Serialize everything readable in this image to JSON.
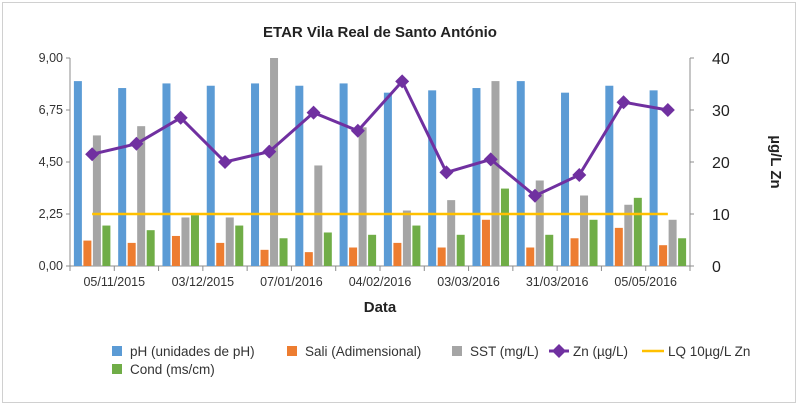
{
  "chart_data": {
    "type": "bar",
    "title": "ETAR Vila Real de Santo António",
    "xlabel": "Data",
    "ylabel_left": "",
    "ylabel_right": "µg/L Zn",
    "ylim_left": [
      0,
      9
    ],
    "ylim_right": [
      0,
      40
    ],
    "y_ticks_left": [
      "0,00",
      "2,25",
      "4,50",
      "6,75",
      "9,00"
    ],
    "y_ticks_right": [
      "0",
      "10",
      "20",
      "30",
      "40"
    ],
    "x_tick_labels": [
      "05/11/2015",
      "03/12/2015",
      "07/01/2016",
      "04/02/2016",
      "03/03/2016",
      "31/03/2016",
      "05/05/2016"
    ],
    "n_groups": 14,
    "series": [
      {
        "name": "pH (unidades de pH)",
        "kind": "bar",
        "axis": "left",
        "color": "#5B9BD5",
        "values": [
          8.0,
          7.7,
          7.9,
          7.8,
          7.9,
          7.8,
          7.9,
          7.5,
          7.6,
          7.7,
          8.0,
          7.5,
          7.8,
          7.6
        ]
      },
      {
        "name": "Sali (Adimensional)",
        "kind": "bar",
        "axis": "left",
        "color": "#ED7D31",
        "values": [
          1.1,
          1.0,
          1.3,
          1.0,
          0.7,
          0.6,
          0.8,
          1.0,
          0.8,
          2.0,
          0.8,
          1.2,
          1.65,
          0.9
        ]
      },
      {
        "name": "SST (mg/L)",
        "kind": "bar",
        "axis": "left",
        "color": "#A5A5A5",
        "values": [
          5.65,
          6.05,
          2.1,
          2.1,
          9.0,
          4.35,
          6.0,
          2.4,
          2.85,
          8.0,
          3.7,
          3.05,
          2.65,
          2.0
        ]
      },
      {
        "name": "Cond (ms/cm)",
        "kind": "bar",
        "axis": "left",
        "color": "#70AD47",
        "values": [
          1.75,
          1.55,
          2.2,
          1.75,
          1.2,
          1.45,
          1.35,
          1.75,
          1.35,
          3.35,
          1.35,
          2.0,
          2.95,
          1.2
        ]
      },
      {
        "name": "Zn (µg/L)",
        "kind": "line-marker",
        "axis": "right",
        "color": "#7030A0",
        "values": [
          21.5,
          23.5,
          28.5,
          20.0,
          22.0,
          29.5,
          26.0,
          35.5,
          18.0,
          20.5,
          13.5,
          17.5,
          31.5,
          30.0
        ]
      },
      {
        "name": "LQ 10µg/L Zn",
        "kind": "line",
        "axis": "right",
        "color": "#FFC000",
        "values": [
          10,
          10,
          10,
          10,
          10,
          10,
          10,
          10,
          10,
          10,
          10,
          10,
          10,
          10
        ]
      }
    ],
    "legend_position": "bottom",
    "grid": false
  }
}
